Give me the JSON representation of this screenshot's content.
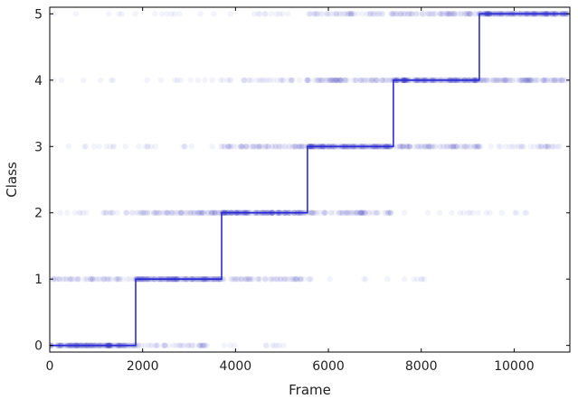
{
  "chart_data": {
    "type": "scatter",
    "title": "",
    "xlabel": "Frame",
    "ylabel": "Class",
    "xlim": [
      0,
      11200
    ],
    "ylim": [
      -0.1,
      5.1
    ],
    "xticks": [
      0,
      2000,
      4000,
      6000,
      8000,
      10000
    ],
    "yticks": [
      0,
      1,
      2,
      3,
      4,
      5
    ],
    "grid": false,
    "legend": "none",
    "colors": {
      "points": "#1a1aa8",
      "line": "#2b2bd6",
      "axis": "#000000"
    },
    "series": [
      {
        "type": "line",
        "step_x": [
          0,
          1850,
          1850,
          3700,
          3700,
          5550,
          5550,
          7400,
          7400,
          9250,
          9250,
          11150
        ],
        "step_y": [
          0,
          0,
          1,
          1,
          2,
          2,
          3,
          3,
          4,
          4,
          5,
          5
        ]
      },
      {
        "type": "scatter",
        "alpha": 0.05,
        "clusters": [
          {
            "class": 0,
            "x_start": 0,
            "x_end": 1850,
            "density": 1.0
          },
          {
            "class": 0,
            "x_start": 1850,
            "x_end": 3400,
            "density": 0.25
          },
          {
            "class": 0,
            "x_start": 3400,
            "x_end": 5200,
            "density": 0.05
          },
          {
            "class": 1,
            "x_start": 0,
            "x_end": 1850,
            "density": 0.28
          },
          {
            "class": 1,
            "x_start": 1850,
            "x_end": 3700,
            "density": 1.0
          },
          {
            "class": 1,
            "x_start": 3700,
            "x_end": 5600,
            "density": 0.3
          },
          {
            "class": 1,
            "x_start": 5600,
            "x_end": 8100,
            "density": 0.04
          },
          {
            "class": 2,
            "x_start": 0,
            "x_end": 1850,
            "density": 0.1
          },
          {
            "class": 2,
            "x_start": 1850,
            "x_end": 3700,
            "density": 0.4
          },
          {
            "class": 2,
            "x_start": 3700,
            "x_end": 5550,
            "density": 1.0
          },
          {
            "class": 2,
            "x_start": 5550,
            "x_end": 7400,
            "density": 0.35
          },
          {
            "class": 2,
            "x_start": 7400,
            "x_end": 10500,
            "density": 0.05
          },
          {
            "class": 3,
            "x_start": 0,
            "x_end": 3700,
            "density": 0.05
          },
          {
            "class": 3,
            "x_start": 3700,
            "x_end": 5550,
            "density": 0.35
          },
          {
            "class": 3,
            "x_start": 5550,
            "x_end": 7400,
            "density": 1.0
          },
          {
            "class": 3,
            "x_start": 7400,
            "x_end": 9250,
            "density": 0.4
          },
          {
            "class": 3,
            "x_start": 9250,
            "x_end": 11150,
            "density": 0.15
          },
          {
            "class": 4,
            "x_start": 0,
            "x_end": 3700,
            "density": 0.04
          },
          {
            "class": 4,
            "x_start": 3700,
            "x_end": 5550,
            "density": 0.15
          },
          {
            "class": 4,
            "x_start": 5550,
            "x_end": 7400,
            "density": 0.4
          },
          {
            "class": 4,
            "x_start": 7400,
            "x_end": 9250,
            "density": 1.0
          },
          {
            "class": 4,
            "x_start": 9250,
            "x_end": 11150,
            "density": 0.45
          },
          {
            "class": 5,
            "x_start": 0,
            "x_end": 5550,
            "density": 0.04
          },
          {
            "class": 5,
            "x_start": 5550,
            "x_end": 7400,
            "density": 0.25
          },
          {
            "class": 5,
            "x_start": 7400,
            "x_end": 9250,
            "density": 0.35
          },
          {
            "class": 5,
            "x_start": 9250,
            "x_end": 11150,
            "density": 1.0
          }
        ]
      }
    ]
  }
}
